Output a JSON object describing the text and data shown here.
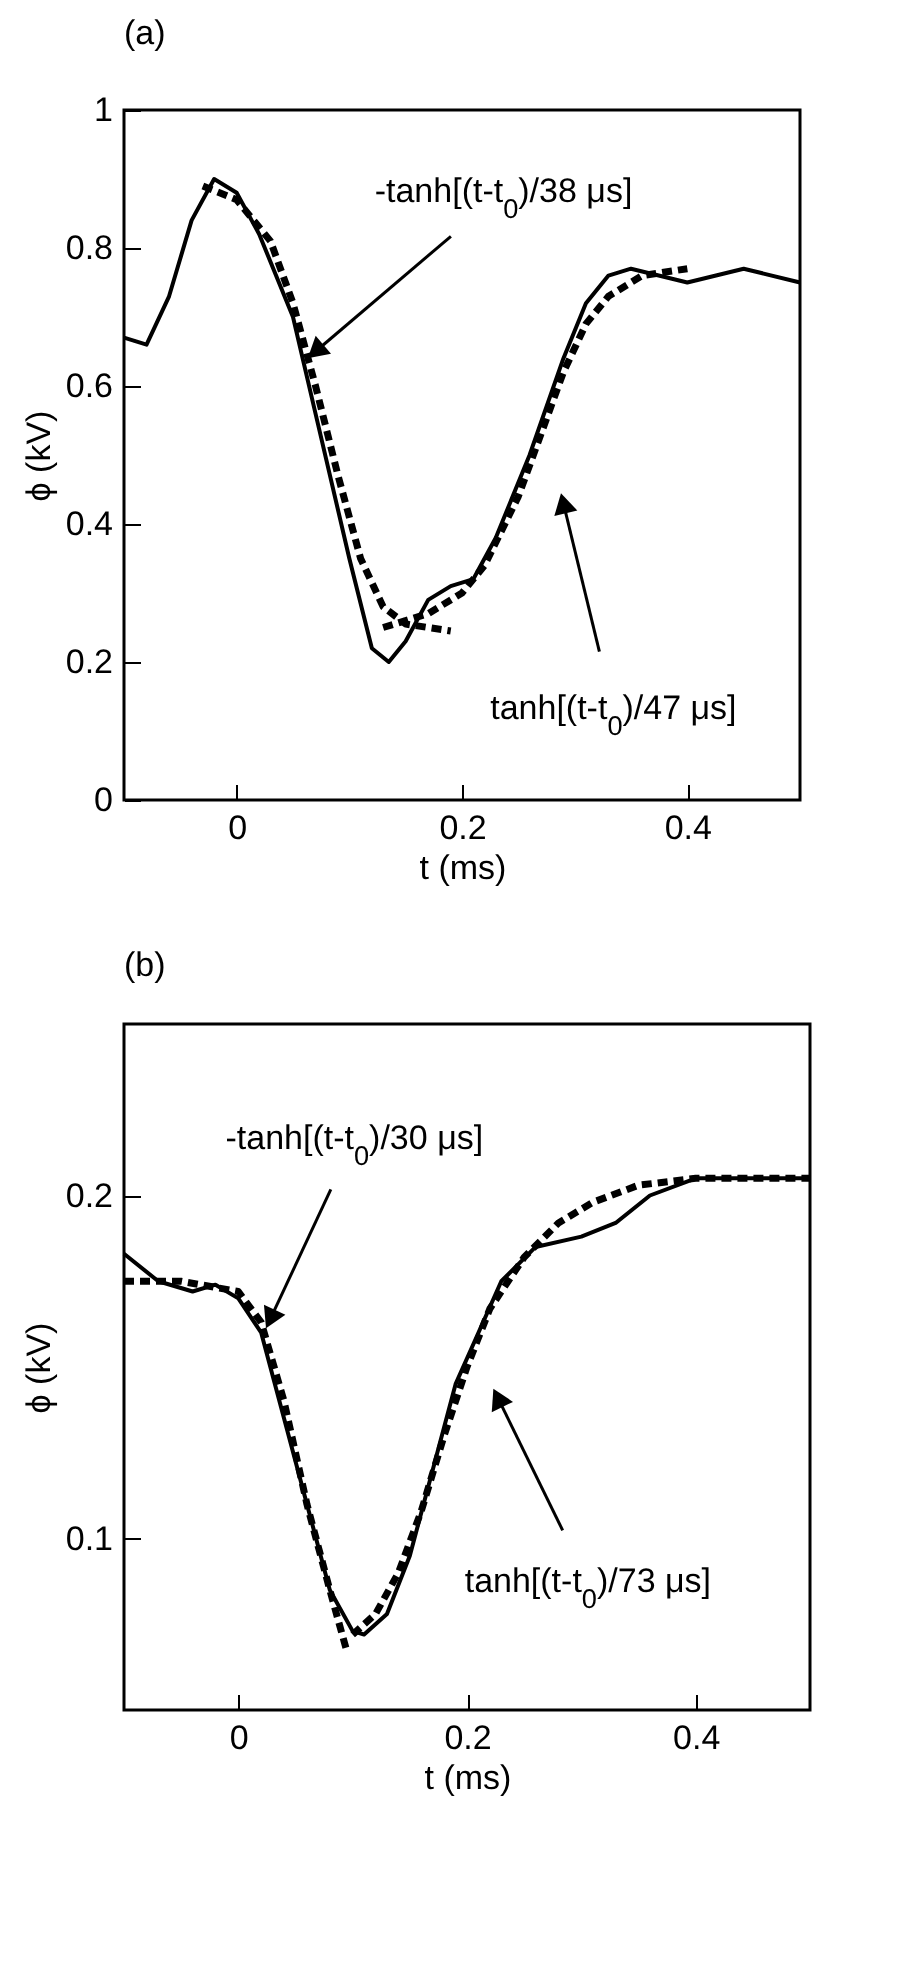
{
  "chart_data": [
    {
      "type": "line",
      "title": "(a)",
      "xlabel": "t (ms)",
      "ylabel": "ϕ (kV)",
      "xlim": [
        -0.1,
        0.5
      ],
      "ylim": [
        0,
        1
      ],
      "xticks": [
        0,
        0.2,
        0.4
      ],
      "yticks": [
        0,
        0.2,
        0.4,
        0.6,
        0.8,
        1
      ],
      "grid": false,
      "series": [
        {
          "color": "#000000",
          "line_style": "solid",
          "x": [
            -0.1,
            -0.08,
            -0.06,
            -0.04,
            -0.02,
            0,
            0.02,
            0.05,
            0.07,
            0.1,
            0.12,
            0.135,
            0.15,
            0.17,
            0.19,
            0.21,
            0.23,
            0.26,
            0.29,
            0.31,
            0.33,
            0.35,
            0.4,
            0.45,
            0.5
          ],
          "values": [
            0.67,
            0.66,
            0.73,
            0.84,
            0.9,
            0.88,
            0.82,
            0.7,
            0.56,
            0.35,
            0.22,
            0.2,
            0.23,
            0.29,
            0.31,
            0.32,
            0.38,
            0.5,
            0.64,
            0.72,
            0.76,
            0.77,
            0.75,
            0.77,
            0.75
          ]
        },
        {
          "color": "#000000",
          "line_style": "dashed",
          "x": [
            -0.03,
            0,
            0.03,
            0.05,
            0.07,
            0.09,
            0.11,
            0.13,
            0.15,
            0.19
          ],
          "values": [
            0.89,
            0.87,
            0.81,
            0.72,
            0.6,
            0.47,
            0.35,
            0.28,
            0.255,
            0.245
          ]
        },
        {
          "color": "#000000",
          "line_style": "dashed",
          "x": [
            0.13,
            0.17,
            0.2,
            0.22,
            0.25,
            0.27,
            0.29,
            0.31,
            0.33,
            0.36,
            0.4
          ],
          "values": [
            0.25,
            0.27,
            0.3,
            0.34,
            0.44,
            0.53,
            0.62,
            0.69,
            0.73,
            0.76,
            0.77
          ]
        }
      ],
      "annotations": [
        {
          "text": "-tanh[(t-t$_{0}$)/38 μs]",
          "x": 0.07,
          "y": 0.65
        },
        {
          "text": "tanh[(t-t$_{0}$)/47 μs]",
          "x": 0.29,
          "y": 0.43
        }
      ]
    },
    {
      "type": "line",
      "title": "(b)",
      "xlabel": "t (ms)",
      "ylabel": "ϕ (kV)",
      "xlim": [
        -0.1,
        0.5
      ],
      "ylim": [
        0.05,
        0.25
      ],
      "xticks": [
        0,
        0.2,
        0.4
      ],
      "yticks": [
        0.1,
        0.2
      ],
      "grid": false,
      "series": [
        {
          "color": "#000000",
          "line_style": "solid",
          "x": [
            -0.1,
            -0.07,
            -0.04,
            -0.02,
            0,
            0.02,
            0.04,
            0.06,
            0.08,
            0.1,
            0.11,
            0.13,
            0.15,
            0.17,
            0.19,
            0.21,
            0.23,
            0.26,
            0.3,
            0.33,
            0.36,
            0.4,
            0.5
          ],
          "values": [
            0.183,
            0.175,
            0.172,
            0.174,
            0.17,
            0.16,
            0.135,
            0.11,
            0.085,
            0.073,
            0.072,
            0.078,
            0.095,
            0.12,
            0.145,
            0.16,
            0.175,
            0.185,
            0.188,
            0.192,
            0.2,
            0.205,
            0.205
          ]
        },
        {
          "color": "#000000",
          "line_style": "dashed",
          "x": [
            -0.1,
            -0.05,
            0,
            0.02,
            0.04,
            0.06,
            0.08,
            0.095
          ],
          "values": [
            0.175,
            0.175,
            0.172,
            0.163,
            0.14,
            0.11,
            0.085,
            0.067
          ]
        },
        {
          "color": "#000000",
          "line_style": "dashed",
          "x": [
            0.1,
            0.12,
            0.14,
            0.16,
            0.18,
            0.2,
            0.22,
            0.25,
            0.28,
            0.31,
            0.35,
            0.4,
            0.5
          ],
          "values": [
            0.072,
            0.078,
            0.09,
            0.108,
            0.13,
            0.15,
            0.167,
            0.182,
            0.192,
            0.198,
            0.203,
            0.205,
            0.205
          ]
        }
      ],
      "annotations": [
        {
          "text": "-tanh[(t-t$_{0}$)/30 μs]",
          "x": 0.028,
          "y": 0.164
        },
        {
          "text": "tanh[(t-t$_{0}$)/73 μs]",
          "x": 0.227,
          "y": 0.141
        }
      ]
    }
  ]
}
